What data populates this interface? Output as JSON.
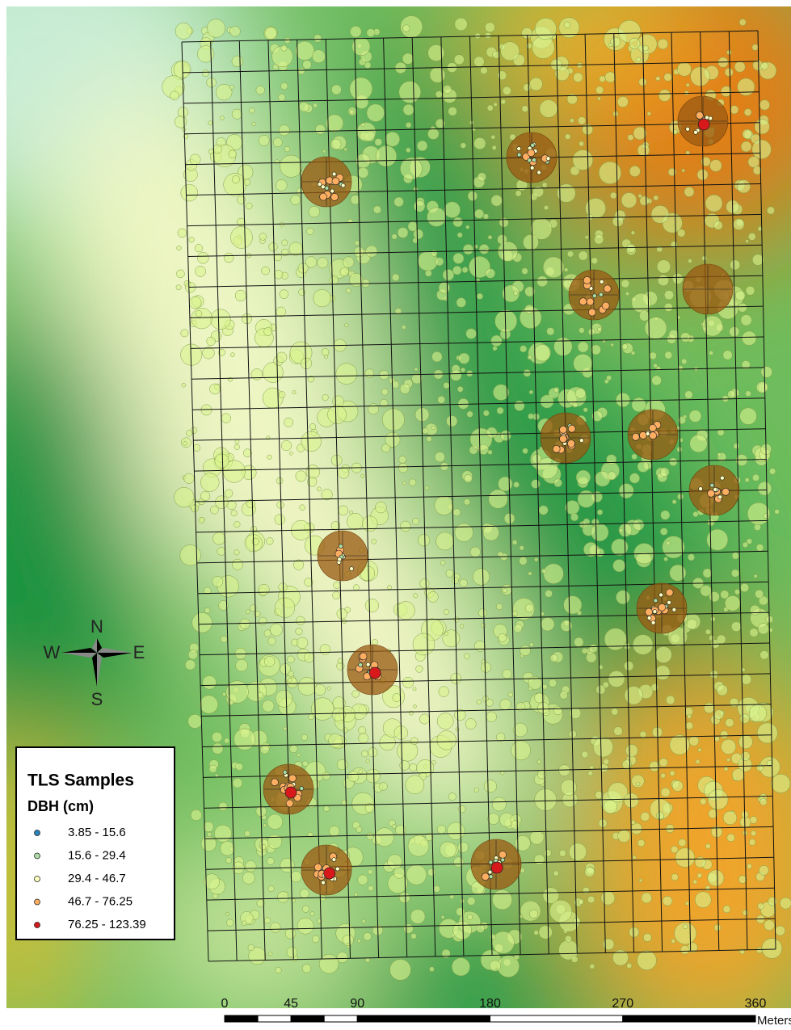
{
  "compass": {
    "north": "N",
    "east": "E",
    "south": "S",
    "west": "W"
  },
  "legend": {
    "title": "TLS Samples",
    "subtitle": "DBH (cm)",
    "items": [
      {
        "label": "3.85 - 15.6",
        "color": "#2b83ba"
      },
      {
        "label": "15.6 - 29.4",
        "color": "#abdda4"
      },
      {
        "label": "29.4 - 46.7",
        "color": "#ffffbf"
      },
      {
        "label": "46.7 - 76.25",
        "color": "#fdae61"
      },
      {
        "label": "76.25 - 123.39",
        "color": "#d7191c"
      }
    ]
  },
  "scale_bar": {
    "ticks": [
      0,
      45,
      90,
      180,
      270,
      360
    ],
    "unit": "Meters"
  }
}
